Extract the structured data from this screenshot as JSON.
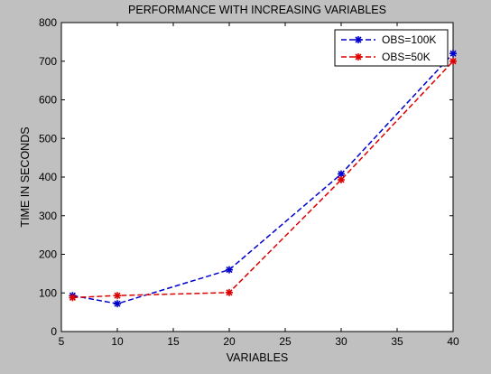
{
  "chart_data": {
    "type": "line",
    "title": "PERFORMANCE WITH INCREASING VARIABLES",
    "xlabel": "VARIABLES",
    "ylabel": "TIME IN SECONDS",
    "xlim": [
      5,
      40
    ],
    "ylim": [
      0,
      800
    ],
    "xticks": [
      5,
      10,
      15,
      20,
      25,
      30,
      35,
      40
    ],
    "yticks": [
      0,
      100,
      200,
      300,
      400,
      500,
      600,
      700,
      800
    ],
    "grid": false,
    "legend_position": "top-right",
    "series": [
      {
        "name": "OBS=100K",
        "color": "#0000cc",
        "line_style": "dashed",
        "marker": "star",
        "x": [
          6,
          10,
          20,
          30,
          40
        ],
        "y": [
          93,
          72,
          160,
          408,
          720
        ]
      },
      {
        "name": "OBS=50K",
        "color": "#dd0000",
        "line_style": "dashed",
        "marker": "star",
        "x": [
          6,
          10,
          20,
          30,
          40
        ],
        "y": [
          88,
          93,
          101,
          393,
          700
        ]
      }
    ]
  }
}
